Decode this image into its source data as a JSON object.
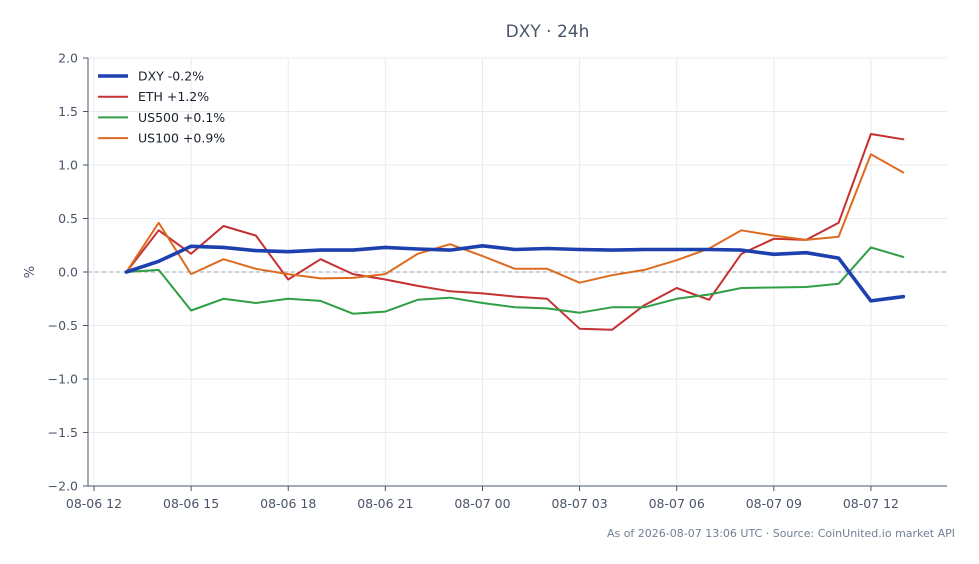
{
  "chart_data": {
    "type": "line",
    "title": "DXY · 24h",
    "xlabel": "",
    "ylabel": "%",
    "ylim": [
      -2.0,
      2.0
    ],
    "y_ticks": [
      -2.0,
      -1.5,
      -1.0,
      -0.5,
      0.0,
      0.5,
      1.0,
      1.5,
      2.0
    ],
    "y_tick_labels": [
      "−2.0",
      "−1.5",
      "−1.0",
      "−0.5",
      "0.0",
      "0.5",
      "1.0",
      "1.5",
      "2.0"
    ],
    "x_range": [
      "2026-08-06 12:00",
      "2026-08-07 14:21"
    ],
    "x_tick_labels": [
      {
        "t": "2026-08-06 12:00",
        "label": "08-06 12"
      },
      {
        "t": "2026-08-06 15:00",
        "label": "08-06 15"
      },
      {
        "t": "2026-08-06 18:00",
        "label": "08-06 18"
      },
      {
        "t": "2026-08-06 21:00",
        "label": "08-06 21"
      },
      {
        "t": "2026-08-07 00:00",
        "label": "08-07 00"
      },
      {
        "t": "2026-08-07 03:00",
        "label": "08-07 03"
      },
      {
        "t": "2026-08-07 06:00",
        "label": "08-07 06"
      },
      {
        "t": "2026-08-07 09:00",
        "label": "08-07 09"
      },
      {
        "t": "2026-08-07 12:00",
        "label": "08-07 12"
      }
    ],
    "x": [
      "2026-08-06 13:00",
      "2026-08-06 14:00",
      "2026-08-06 15:00",
      "2026-08-06 16:00",
      "2026-08-06 17:00",
      "2026-08-06 18:00",
      "2026-08-06 19:00",
      "2026-08-06 20:00",
      "2026-08-06 21:00",
      "2026-08-06 22:00",
      "2026-08-06 23:00",
      "2026-08-07 00:00",
      "2026-08-07 01:00",
      "2026-08-07 02:00",
      "2026-08-07 03:00",
      "2026-08-07 04:00",
      "2026-08-07 05:00",
      "2026-08-07 06:00",
      "2026-08-07 07:00",
      "2026-08-07 08:00",
      "2026-08-07 09:00",
      "2026-08-07 10:00",
      "2026-08-07 11:00",
      "2026-08-07 12:00",
      "2026-08-07 13:00"
    ],
    "series": [
      {
        "name": "DXY -0.2%",
        "color": "#1e40af",
        "emphasis": true,
        "values": [
          0.0,
          0.1,
          0.24,
          0.23,
          0.2,
          0.19,
          0.205,
          0.205,
          0.23,
          0.215,
          0.205,
          0.245,
          0.21,
          0.22,
          0.21,
          0.205,
          0.21,
          0.21,
          0.21,
          0.205,
          0.165,
          0.18,
          0.13,
          -0.27,
          -0.23
        ]
      },
      {
        "name": "ETH +1.2%",
        "color": "#c53030",
        "values": [
          0.0,
          0.39,
          0.17,
          0.43,
          0.34,
          -0.07,
          0.12,
          -0.02,
          -0.07,
          -0.13,
          -0.18,
          -0.2,
          -0.23,
          -0.25,
          -0.53,
          -0.54,
          -0.31,
          -0.15,
          -0.26,
          0.17,
          0.31,
          0.3,
          0.46,
          1.29,
          1.24
        ]
      },
      {
        "name": "US500 +0.1%",
        "color": "#2f9e44",
        "values": [
          0.0,
          0.02,
          -0.36,
          -0.25,
          -0.29,
          -0.25,
          -0.27,
          -0.39,
          -0.37,
          -0.26,
          -0.24,
          -0.29,
          -0.33,
          -0.34,
          -0.38,
          -0.33,
          -0.33,
          -0.25,
          -0.21,
          -0.15,
          -0.145,
          -0.14,
          -0.11,
          0.23,
          0.14
        ]
      },
      {
        "name": "US100 +0.9%",
        "color": "#dd6b20",
        "values": [
          0.0,
          0.46,
          -0.02,
          0.12,
          0.03,
          -0.02,
          -0.06,
          -0.055,
          -0.02,
          0.17,
          0.26,
          0.15,
          0.03,
          0.03,
          -0.1,
          -0.03,
          0.02,
          0.11,
          0.22,
          0.39,
          0.34,
          0.3,
          0.33,
          1.1,
          0.93
        ]
      }
    ],
    "reference_line": {
      "y": 0.0,
      "style": "dashed"
    },
    "grid": true,
    "legend": "top-left"
  },
  "footer": "As of 2026-08-07 13:06 UTC · Source: CoinUnited.io market API"
}
